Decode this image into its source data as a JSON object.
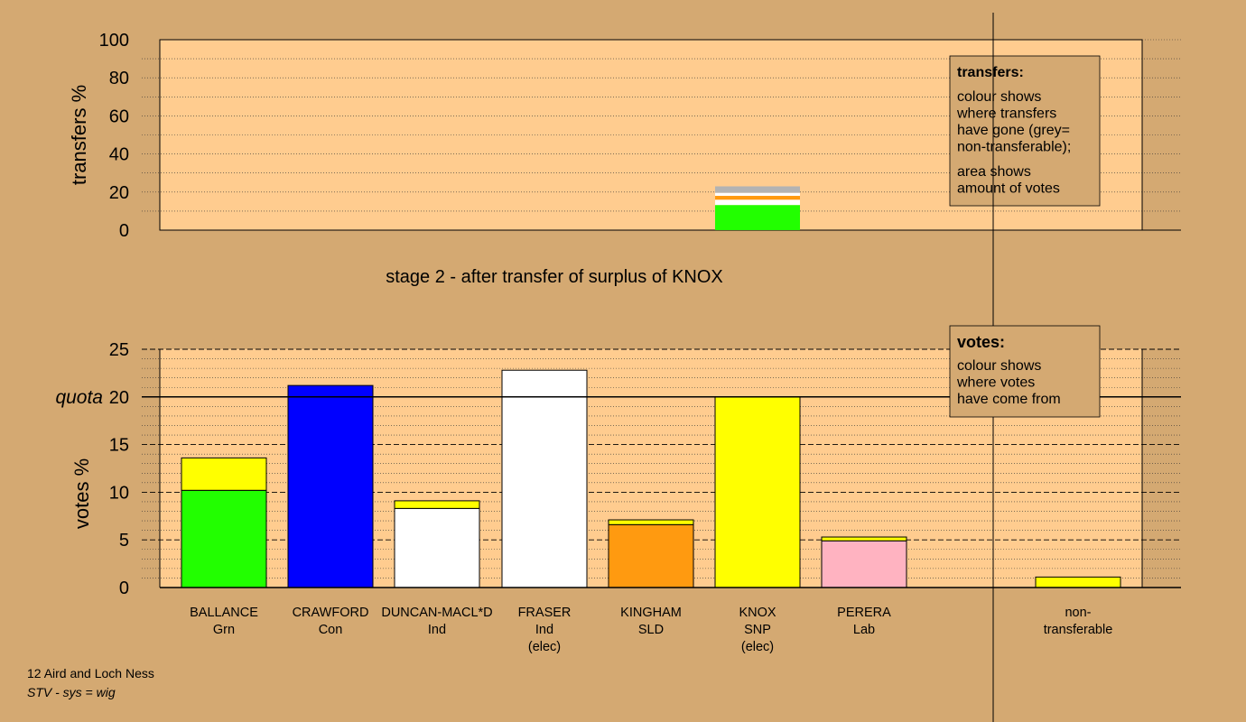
{
  "chart_data": [
    {
      "type": "bar",
      "stacked": true,
      "ylabel": "transfers %",
      "ylim": [
        0,
        100
      ],
      "yticks": [
        0,
        20,
        40,
        60,
        80,
        100
      ],
      "grid": "dotted",
      "categories": [
        "BALLANCE",
        "CRAWFORD",
        "DUNCAN-MACL*D",
        "FRASER",
        "KINGHAM",
        "KNOX",
        "PERERA",
        "non-transferable"
      ],
      "stacks": [
        {
          "category": "KNOX",
          "segments": [
            {
              "to": "BALLANCE",
              "value": 13.2,
              "color": "#22ff00"
            },
            {
              "to": "DUNCAN-MACL*D",
              "value": 2.8,
              "color": "#ffffff"
            },
            {
              "to": "KINGHAM",
              "value": 2.0,
              "color": "#ff9a10"
            },
            {
              "to": "PERERA",
              "value": 1.6,
              "color": "#ffffff"
            },
            {
              "to": "non-transferable",
              "value": 3.4,
              "color": "#b3b3b3"
            }
          ]
        }
      ],
      "legend": {
        "title": "transfers:",
        "lines1": [
          "colour shows",
          "where transfers",
          "have gone (grey=",
          "non-transferable);"
        ],
        "lines2": [
          "area shows",
          "amount of votes"
        ]
      }
    },
    {
      "type": "bar",
      "stacked": true,
      "title": "stage 2 - after transfer of surplus of KNOX",
      "ylabel": "votes %",
      "ylim": [
        0,
        25
      ],
      "yticks": [
        0,
        5,
        10,
        15,
        20,
        25
      ],
      "quota": {
        "label": "quota",
        "value": 20
      },
      "grid": "dotted",
      "categories": [
        {
          "name": "BALLANCE",
          "party": "Grn",
          "note": ""
        },
        {
          "name": "CRAWFORD",
          "party": "Con",
          "note": ""
        },
        {
          "name": "DUNCAN-MACL*D",
          "party": "Ind",
          "note": ""
        },
        {
          "name": "FRASER",
          "party": "Ind",
          "note": "(elec)"
        },
        {
          "name": "KINGHAM",
          "party": "SLD",
          "note": ""
        },
        {
          "name": "KNOX",
          "party": "SNP",
          "note": "(elec)"
        },
        {
          "name": "PERERA",
          "party": "Lab",
          "note": ""
        },
        {
          "name": "non-",
          "party": "transferable",
          "note": ""
        }
      ],
      "stacks": [
        {
          "category": "BALLANCE",
          "segments": [
            {
              "value": 10.2,
              "color": "#22ff00"
            },
            {
              "value": 3.4,
              "color": "#ffff00"
            }
          ]
        },
        {
          "category": "CRAWFORD",
          "segments": [
            {
              "value": 21.2,
              "color": "#0000ff"
            }
          ]
        },
        {
          "category": "DUNCAN-MACL*D",
          "segments": [
            {
              "value": 8.3,
              "color": "#ffffff"
            },
            {
              "value": 0.8,
              "color": "#ffff00"
            }
          ]
        },
        {
          "category": "FRASER",
          "segments": [
            {
              "value": 22.8,
              "color": "#ffffff"
            }
          ]
        },
        {
          "category": "KINGHAM",
          "segments": [
            {
              "value": 6.6,
              "color": "#ff9a10"
            },
            {
              "value": 0.5,
              "color": "#ffff00"
            }
          ]
        },
        {
          "category": "KNOX",
          "segments": [
            {
              "value": 20.0,
              "color": "#ffff00"
            }
          ]
        },
        {
          "category": "PERERA",
          "segments": [
            {
              "value": 4.9,
              "color": "#ffb3c1"
            },
            {
              "value": 0.4,
              "color": "#ffff00"
            }
          ]
        },
        {
          "category": "non-transferable",
          "segments": [
            {
              "value": 1.1,
              "color": "#ffff00"
            }
          ]
        }
      ],
      "legend": {
        "title": "votes:",
        "lines": [
          "colour shows",
          "where votes",
          "have come from"
        ]
      }
    }
  ],
  "footer": {
    "line1": "12 Aird and Loch Ness",
    "line2": "STV - sys = wig"
  },
  "colors": {
    "background": "#d4a972",
    "plot_area": "#ffcc8f",
    "legend_box": "#d4a972"
  }
}
